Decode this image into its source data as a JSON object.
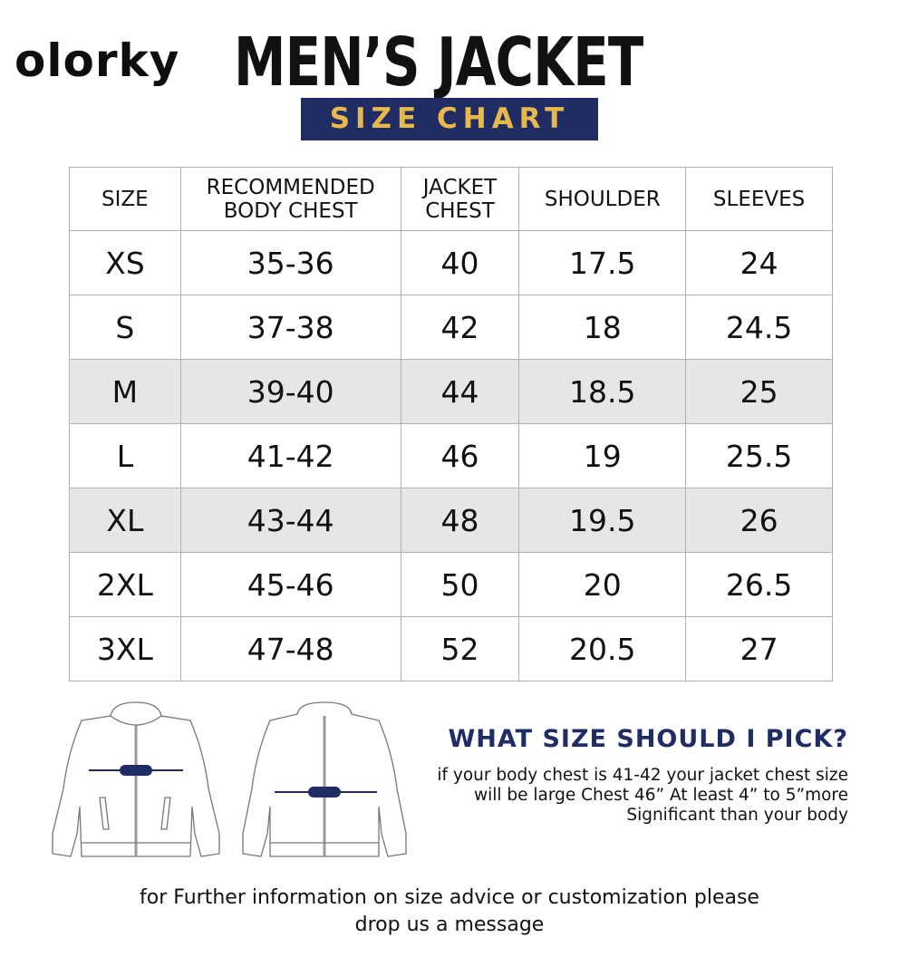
{
  "brand": {
    "logo": "olorky"
  },
  "header": {
    "title": "MEN’S JACKET",
    "subtitle": "SIZE CHART"
  },
  "colors": {
    "navy": "#1f2d64",
    "gold": "#e9b84a",
    "shade": "#e6e6e6"
  },
  "table": {
    "headers": [
      "SIZE",
      "RECOMMENDED BODY CHEST",
      "JACKET CHEST",
      "SHOULDER",
      "SLEEVES"
    ],
    "rows": [
      [
        "XS",
        "35-36",
        "40",
        "17.5",
        "24"
      ],
      [
        "S",
        "37-38",
        "42",
        "18",
        "24.5"
      ],
      [
        "M",
        "39-40",
        "44",
        "18.5",
        "25"
      ],
      [
        "L",
        "41-42",
        "46",
        "19",
        "25.5"
      ],
      [
        "XL",
        "43-44",
        "48",
        "19.5",
        "26"
      ],
      [
        "2XL",
        "45-46",
        "50",
        "20",
        "26.5"
      ],
      [
        "3XL",
        "47-48",
        "52",
        "20.5",
        "27"
      ]
    ]
  },
  "advice": {
    "title": "WHAT SIZE SHOULD I PICK?",
    "lines": [
      "if your body chest is 41-42 your jacket chest size",
      "will be large Chest 46” At least 4” to 5”more",
      "Significant than your body"
    ]
  },
  "footer": {
    "lines": [
      "for Further information on size advice or customization please",
      "drop us a message"
    ]
  }
}
